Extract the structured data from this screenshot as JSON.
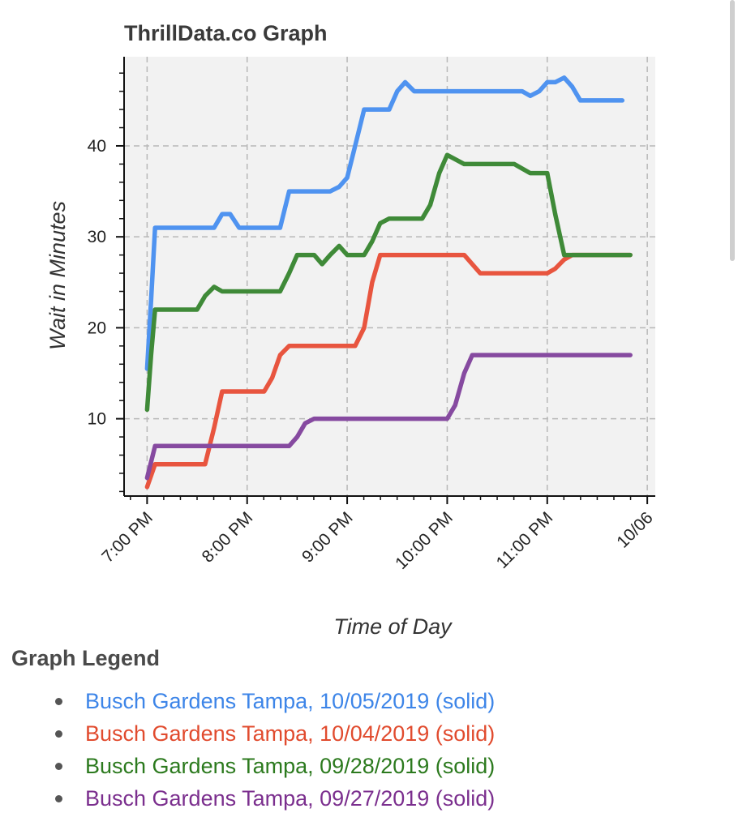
{
  "chart_data": {
    "type": "line",
    "title": "ThrillData.co Graph",
    "xlabel": "Time of Day",
    "ylabel": "Wait in Minutes",
    "x_unit": "hours",
    "x_tick_labels": [
      "7:00 PM",
      "8:00 PM",
      "9:00 PM",
      "10:00 PM",
      "11:00 PM",
      "10/06"
    ],
    "x_ticks": [
      19,
      20,
      21,
      22,
      23,
      24
    ],
    "xlim": [
      18.77,
      24.08
    ],
    "y_ticks": [
      10,
      20,
      30,
      40
    ],
    "y_tick_labels": [
      "10",
      "20",
      "30",
      "40"
    ],
    "ylim": [
      1.5,
      49.8
    ],
    "grid": true,
    "series": [
      {
        "name": "Busch Gardens Tampa, 10/05/2019 (solid)",
        "color": "#4f93f0",
        "points": [
          [
            19.0,
            15.5
          ],
          [
            19.04,
            23
          ],
          [
            19.08,
            31
          ],
          [
            19.25,
            31
          ],
          [
            19.5,
            31
          ],
          [
            19.67,
            31
          ],
          [
            19.75,
            32.5
          ],
          [
            19.83,
            32.5
          ],
          [
            19.92,
            31
          ],
          [
            20.0,
            31
          ],
          [
            20.25,
            31
          ],
          [
            20.33,
            31
          ],
          [
            20.42,
            35
          ],
          [
            20.5,
            35
          ],
          [
            20.83,
            35
          ],
          [
            20.92,
            35.5
          ],
          [
            21.0,
            36.5
          ],
          [
            21.08,
            40
          ],
          [
            21.17,
            44
          ],
          [
            21.25,
            44
          ],
          [
            21.42,
            44
          ],
          [
            21.5,
            46
          ],
          [
            21.58,
            47
          ],
          [
            21.67,
            46
          ],
          [
            22.0,
            46
          ],
          [
            22.5,
            46
          ],
          [
            22.75,
            46
          ],
          [
            22.83,
            45.5
          ],
          [
            22.92,
            46
          ],
          [
            23.0,
            47
          ],
          [
            23.08,
            47
          ],
          [
            23.17,
            47.5
          ],
          [
            23.25,
            46.5
          ],
          [
            23.33,
            45
          ],
          [
            23.5,
            45
          ],
          [
            23.75,
            45
          ]
        ]
      },
      {
        "name": "Busch Gardens Tampa, 10/04/2019 (solid)",
        "color": "#e8553f",
        "points": [
          [
            19.0,
            2.5
          ],
          [
            19.08,
            5
          ],
          [
            19.25,
            5
          ],
          [
            19.5,
            5
          ],
          [
            19.58,
            5
          ],
          [
            19.67,
            9
          ],
          [
            19.75,
            13
          ],
          [
            19.92,
            13
          ],
          [
            20.17,
            13
          ],
          [
            20.25,
            14.5
          ],
          [
            20.33,
            17
          ],
          [
            20.42,
            18
          ],
          [
            20.5,
            18
          ],
          [
            20.75,
            18
          ],
          [
            21.0,
            18
          ],
          [
            21.08,
            18
          ],
          [
            21.17,
            20
          ],
          [
            21.25,
            25
          ],
          [
            21.33,
            28
          ],
          [
            21.5,
            28
          ],
          [
            22.0,
            28
          ],
          [
            22.17,
            28
          ],
          [
            22.33,
            26
          ],
          [
            22.5,
            26
          ],
          [
            23.0,
            26
          ],
          [
            23.08,
            26.5
          ],
          [
            23.17,
            27.5
          ],
          [
            23.25,
            28
          ],
          [
            23.5,
            28
          ],
          [
            23.83,
            28
          ]
        ]
      },
      {
        "name": "Busch Gardens Tampa, 09/28/2019 (solid)",
        "color": "#3f8a38",
        "points": [
          [
            19.0,
            11
          ],
          [
            19.04,
            17
          ],
          [
            19.08,
            22
          ],
          [
            19.25,
            22
          ],
          [
            19.5,
            22
          ],
          [
            19.58,
            23.5
          ],
          [
            19.67,
            24.5
          ],
          [
            19.75,
            24
          ],
          [
            20.0,
            24
          ],
          [
            20.33,
            24
          ],
          [
            20.42,
            26
          ],
          [
            20.5,
            28
          ],
          [
            20.67,
            28
          ],
          [
            20.75,
            27
          ],
          [
            20.83,
            28
          ],
          [
            20.92,
            29
          ],
          [
            21.0,
            28
          ],
          [
            21.17,
            28
          ],
          [
            21.25,
            29.5
          ],
          [
            21.33,
            31.5
          ],
          [
            21.42,
            32
          ],
          [
            21.5,
            32
          ],
          [
            21.75,
            32
          ],
          [
            21.83,
            33.5
          ],
          [
            21.92,
            37
          ],
          [
            22.0,
            39
          ],
          [
            22.17,
            38
          ],
          [
            22.5,
            38
          ],
          [
            22.67,
            38
          ],
          [
            22.83,
            37
          ],
          [
            23.0,
            37
          ],
          [
            23.08,
            32.5
          ],
          [
            23.17,
            28
          ],
          [
            23.5,
            28
          ],
          [
            23.83,
            28
          ]
        ]
      },
      {
        "name": "Busch Gardens Tampa, 09/27/2019 (solid)",
        "color": "#864aa0",
        "points": [
          [
            19.0,
            3.5
          ],
          [
            19.08,
            7
          ],
          [
            19.25,
            7
          ],
          [
            19.5,
            7
          ],
          [
            20.0,
            7
          ],
          [
            20.42,
            7
          ],
          [
            20.5,
            8
          ],
          [
            20.58,
            9.5
          ],
          [
            20.67,
            10
          ],
          [
            21.0,
            10
          ],
          [
            21.5,
            10
          ],
          [
            22.0,
            10
          ],
          [
            22.08,
            11.5
          ],
          [
            22.17,
            15
          ],
          [
            22.25,
            17
          ],
          [
            22.5,
            17
          ],
          [
            23.0,
            17
          ],
          [
            23.5,
            17
          ],
          [
            23.83,
            17
          ]
        ]
      }
    ]
  },
  "legend": {
    "title": "Graph Legend",
    "items": [
      {
        "label": "Busch Gardens Tampa, 10/05/2019 (solid)",
        "color": "#3d85e8"
      },
      {
        "label": "Busch Gardens Tampa, 10/04/2019 (solid)",
        "color": "#e14b2e"
      },
      {
        "label": "Busch Gardens Tampa, 09/28/2019 (solid)",
        "color": "#2c7a1e"
      },
      {
        "label": "Busch Gardens Tampa, 09/27/2019 (solid)",
        "color": "#7b2f8e"
      }
    ]
  }
}
